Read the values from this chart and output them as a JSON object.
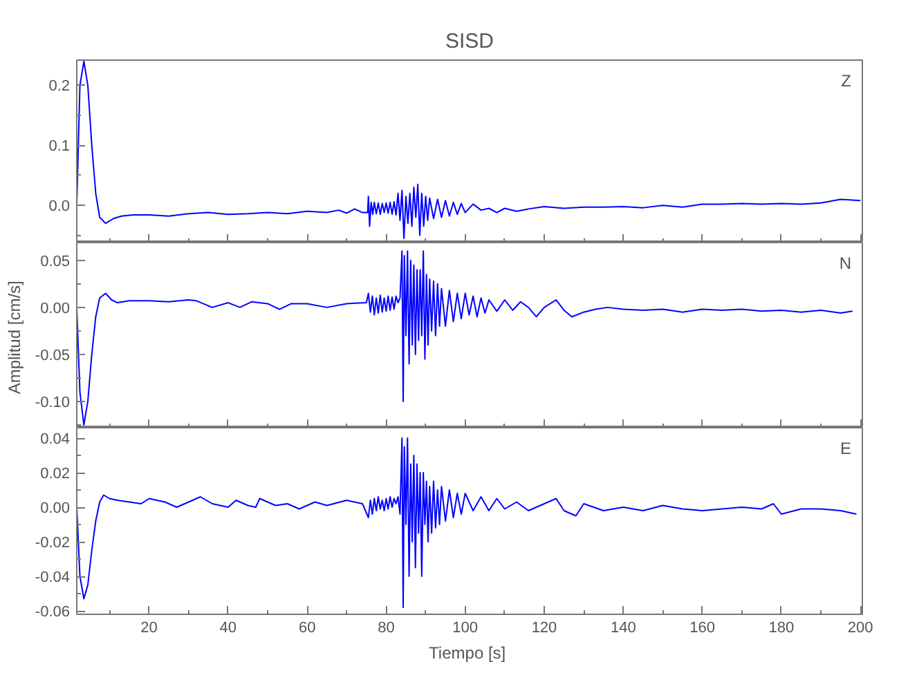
{
  "chart_data": [
    {
      "type": "line",
      "title": "SISD",
      "annotations": [
        "Z"
      ],
      "xlim": [
        1.7,
        200.5
      ],
      "xticks": [
        {
          "value": 10,
          "label": null
        },
        20,
        {
          "value": 30,
          "label": null
        },
        40,
        {
          "value": 50,
          "label": null
        },
        60,
        {
          "value": 70,
          "label": null
        },
        80,
        {
          "value": 90,
          "label": null
        },
        100,
        {
          "value": 110,
          "label": null
        },
        120,
        {
          "value": 130,
          "label": null
        },
        140,
        {
          "value": 150,
          "label": null
        },
        160,
        {
          "value": 170,
          "label": null
        },
        180,
        {
          "value": 190,
          "label": null
        },
        200
      ],
      "ylim": [
        -0.062,
        0.242
      ],
      "yticks": [
        {
          "value": -0.05,
          "label": null
        },
        {
          "value": 0,
          "label": "0.0"
        },
        {
          "value": 0.05,
          "label": null
        },
        0.1,
        {
          "value": 0.15,
          "label": null
        },
        0.2
      ],
      "tick_labels": "y",
      "grid": false,
      "series": [
        {
          "color": "#0000ff",
          "x": [
            1.7,
            2.5,
            3.5,
            4.5,
            5.5,
            6.5,
            7.5,
            9,
            11,
            13,
            16,
            20,
            25,
            30,
            35,
            40,
            45,
            50,
            55,
            60,
            65,
            68,
            70,
            72,
            74,
            75.3,
            75.5,
            75.8,
            76.2,
            76.6,
            77,
            77.5,
            78,
            78.5,
            79,
            79.5,
            80,
            80.5,
            81,
            81.5,
            82,
            82.5,
            83,
            83.5,
            84,
            84.5,
            85,
            85.5,
            86,
            86.5,
            87,
            87.5,
            88,
            88.5,
            89,
            89.5,
            90,
            90.5,
            91,
            92,
            93,
            94,
            95,
            96,
            97,
            98,
            99,
            100,
            102,
            104,
            106,
            108,
            110,
            113,
            116,
            120,
            125,
            130,
            135,
            140,
            145,
            150,
            155,
            160,
            165,
            170,
            175,
            180,
            185,
            190,
            195,
            200
          ],
          "values": [
            0.0,
            0.2,
            0.24,
            0.2,
            0.1,
            0.02,
            -0.02,
            -0.03,
            -0.022,
            -0.018,
            -0.016,
            -0.016,
            -0.018,
            -0.014,
            -0.012,
            -0.015,
            -0.014,
            -0.012,
            -0.014,
            -0.01,
            -0.012,
            -0.008,
            -0.013,
            -0.006,
            -0.012,
            -0.012,
            0.015,
            -0.035,
            0.005,
            -0.015,
            0.005,
            -0.014,
            0.004,
            -0.015,
            0.003,
            -0.012,
            0.004,
            -0.013,
            0.005,
            -0.015,
            0.006,
            -0.016,
            0.02,
            -0.025,
            0.025,
            -0.055,
            0.015,
            -0.03,
            0.02,
            -0.035,
            0.03,
            -0.02,
            0.035,
            -0.05,
            0.02,
            -0.035,
            0.015,
            -0.025,
            0.012,
            -0.022,
            0.01,
            -0.02,
            0.008,
            -0.018,
            0.005,
            -0.015,
            0.003,
            -0.012,
            0.002,
            -0.008,
            -0.005,
            -0.012,
            -0.005,
            -0.01,
            -0.006,
            -0.002,
            -0.005,
            -0.003,
            -0.003,
            -0.002,
            -0.004,
            0.0,
            -0.003,
            0.002,
            0.002,
            0.003,
            0.002,
            0.003,
            0.002,
            0.004,
            0.01,
            0.008
          ]
        }
      ]
    },
    {
      "type": "line",
      "ylabel": "Amplitud  [cm/s]",
      "annotations": [
        "N"
      ],
      "xlim": [
        1.7,
        200.5
      ],
      "xticks": [
        {
          "value": 10,
          "label": null
        },
        20,
        {
          "value": 30,
          "label": null
        },
        40,
        {
          "value": 50,
          "label": null
        },
        60,
        {
          "value": 70,
          "label": null
        },
        80,
        {
          "value": 90,
          "label": null
        },
        100,
        {
          "value": 110,
          "label": null
        },
        120,
        {
          "value": 130,
          "label": null
        },
        140,
        {
          "value": 150,
          "label": null
        },
        160,
        {
          "value": 170,
          "label": null
        },
        180,
        {
          "value": 190,
          "label": null
        },
        200
      ],
      "ylim": [
        -0.128,
        0.069
      ],
      "yticks": [
        {
          "value": -0.125,
          "label": null
        },
        {
          "value": -0.1,
          "label": "-0.10"
        },
        {
          "value": -0.075,
          "label": null
        },
        -0.05,
        {
          "value": -0.025,
          "label": null
        },
        {
          "value": 0,
          "label": "0.00"
        },
        {
          "value": 0.025,
          "label": null
        },
        0.05
      ],
      "tick_labels": "y",
      "grid": false,
      "series": [
        {
          "color": "#0000ff",
          "x": [
            1.7,
            2.5,
            3.5,
            4.5,
            5.5,
            6.5,
            7.5,
            9,
            10.5,
            12,
            15,
            20,
            25,
            30,
            32,
            36,
            40,
            43,
            46,
            50,
            53,
            56,
            60,
            65,
            70,
            75,
            75.5,
            76,
            76.5,
            77,
            77.5,
            78,
            78.5,
            79,
            79.5,
            80,
            80.5,
            81,
            81.5,
            82,
            82.5,
            83,
            83.5,
            84,
            84.3,
            84.6,
            85,
            85.4,
            85.8,
            86.2,
            86.6,
            87,
            87.4,
            87.8,
            88.2,
            88.6,
            89,
            89.4,
            89.8,
            90.2,
            90.6,
            91,
            91.5,
            92,
            92.5,
            93,
            93.5,
            94,
            95,
            96,
            97,
            98,
            99,
            100,
            101,
            102,
            103,
            104,
            105,
            106,
            108,
            110,
            112,
            114,
            116,
            118,
            120,
            123,
            125,
            127,
            130,
            133,
            136,
            140,
            145,
            150,
            155,
            160,
            165,
            170,
            175,
            180,
            185,
            190,
            195,
            198
          ],
          "values": [
            0.0,
            -0.09,
            -0.125,
            -0.1,
            -0.05,
            -0.01,
            0.01,
            0.015,
            0.008,
            0.005,
            0.007,
            0.007,
            0.006,
            0.008,
            0.007,
            0.0,
            0.005,
            0.0,
            0.006,
            0.004,
            -0.002,
            0.004,
            0.004,
            0.0,
            0.004,
            0.005,
            0.015,
            -0.005,
            0.012,
            -0.008,
            0.01,
            -0.006,
            0.013,
            -0.005,
            0.01,
            -0.004,
            0.012,
            -0.003,
            0.011,
            -0.002,
            0.012,
            0.005,
            0.01,
            0.06,
            -0.1,
            0.055,
            -0.03,
            0.06,
            -0.06,
            0.05,
            -0.04,
            0.045,
            -0.05,
            0.04,
            -0.035,
            0.04,
            -0.03,
            0.06,
            -0.055,
            0.035,
            -0.04,
            0.03,
            -0.025,
            0.028,
            -0.03,
            0.025,
            -0.02,
            0.02,
            -0.02,
            0.018,
            -0.015,
            0.015,
            -0.012,
            0.015,
            -0.008,
            0.012,
            -0.01,
            0.01,
            -0.006,
            0.008,
            -0.004,
            0.008,
            -0.003,
            0.006,
            0.0,
            -0.01,
            0.0,
            0.008,
            -0.003,
            -0.01,
            -0.005,
            -0.002,
            0.0,
            -0.002,
            -0.003,
            -0.002,
            -0.005,
            -0.002,
            -0.003,
            -0.002,
            -0.004,
            -0.003,
            -0.005,
            -0.003,
            -0.006,
            -0.004
          ]
        }
      ]
    },
    {
      "type": "line",
      "xlabel": "Tiempo  [s]",
      "annotations": [
        "E"
      ],
      "xlim": [
        1.7,
        200.5
      ],
      "xticks": [
        {
          "value": 10,
          "label": null
        },
        20,
        {
          "value": 30,
          "label": null
        },
        40,
        {
          "value": 50,
          "label": null
        },
        60,
        {
          "value": 70,
          "label": null
        },
        80,
        {
          "value": 90,
          "label": null
        },
        100,
        {
          "value": 110,
          "label": null
        },
        120,
        {
          "value": 130,
          "label": null
        },
        140,
        {
          "value": 150,
          "label": null
        },
        160,
        {
          "value": 170,
          "label": null
        },
        180,
        {
          "value": 190,
          "label": null
        },
        200
      ],
      "ylim": [
        -0.062,
        0.046
      ],
      "yticks": [
        -0.06,
        {
          "value": -0.05,
          "label": null
        },
        -0.04,
        {
          "value": -0.03,
          "label": null
        },
        -0.02,
        {
          "value": -0.01,
          "label": null
        },
        {
          "value": 0,
          "label": "0.00"
        },
        {
          "value": 0.01,
          "label": null
        },
        0.02,
        {
          "value": 0.03,
          "label": null
        },
        0.04
      ],
      "grid": false,
      "series": [
        {
          "color": "#0000ff",
          "x": [
            1.7,
            2.5,
            3.5,
            4.5,
            5.5,
            6.5,
            7.5,
            8.5,
            10,
            12,
            15,
            18,
            20,
            24,
            27,
            30,
            33,
            36,
            40,
            42,
            45,
            47,
            48,
            52,
            55,
            58,
            62,
            65,
            70,
            74,
            75.5,
            76,
            76.5,
            77,
            77.5,
            78,
            78.5,
            79,
            79.5,
            80,
            80.5,
            81,
            81.5,
            82,
            82.5,
            83,
            83.5,
            84,
            84.3,
            84.6,
            85,
            85.4,
            85.8,
            86.2,
            86.6,
            87,
            87.4,
            87.8,
            88.2,
            88.6,
            89,
            89.4,
            89.8,
            90.2,
            90.6,
            91,
            91.5,
            92,
            92.5,
            93,
            93.5,
            94,
            95,
            96,
            97,
            98,
            99,
            100,
            102,
            104,
            106,
            108,
            110,
            113,
            116,
            120,
            123,
            125,
            128,
            130,
            135,
            140,
            145,
            150,
            155,
            160,
            165,
            170,
            175,
            178,
            180,
            185,
            190,
            195,
            199
          ],
          "values": [
            0.0,
            -0.04,
            -0.053,
            -0.045,
            -0.025,
            -0.008,
            0.003,
            0.007,
            0.005,
            0.004,
            0.003,
            0.002,
            0.005,
            0.003,
            0.0,
            0.003,
            0.006,
            0.002,
            0.0,
            0.004,
            0.001,
            0.0,
            0.005,
            0.001,
            0.002,
            -0.001,
            0.003,
            0.001,
            0.004,
            0.002,
            -0.006,
            0.004,
            -0.004,
            0.005,
            -0.002,
            0.006,
            -0.001,
            0.004,
            -0.002,
            0.005,
            -0.001,
            0.006,
            0.0,
            0.005,
            0.002,
            0.006,
            -0.004,
            0.04,
            -0.058,
            0.035,
            -0.01,
            0.04,
            -0.04,
            0.025,
            -0.02,
            0.03,
            -0.035,
            0.025,
            -0.015,
            0.02,
            -0.04,
            0.02,
            -0.01,
            0.015,
            -0.02,
            0.012,
            -0.015,
            0.015,
            -0.012,
            0.01,
            -0.01,
            0.012,
            -0.008,
            0.01,
            -0.006,
            0.008,
            -0.004,
            0.008,
            -0.002,
            0.006,
            -0.002,
            0.005,
            -0.001,
            0.003,
            -0.002,
            0.002,
            0.005,
            -0.002,
            -0.005,
            0.002,
            -0.002,
            0.0,
            -0.002,
            0.001,
            -0.001,
            -0.002,
            -0.001,
            0.0,
            -0.001,
            0.002,
            -0.004,
            -0.001,
            -0.001,
            -0.002,
            -0.004
          ]
        }
      ]
    }
  ]
}
